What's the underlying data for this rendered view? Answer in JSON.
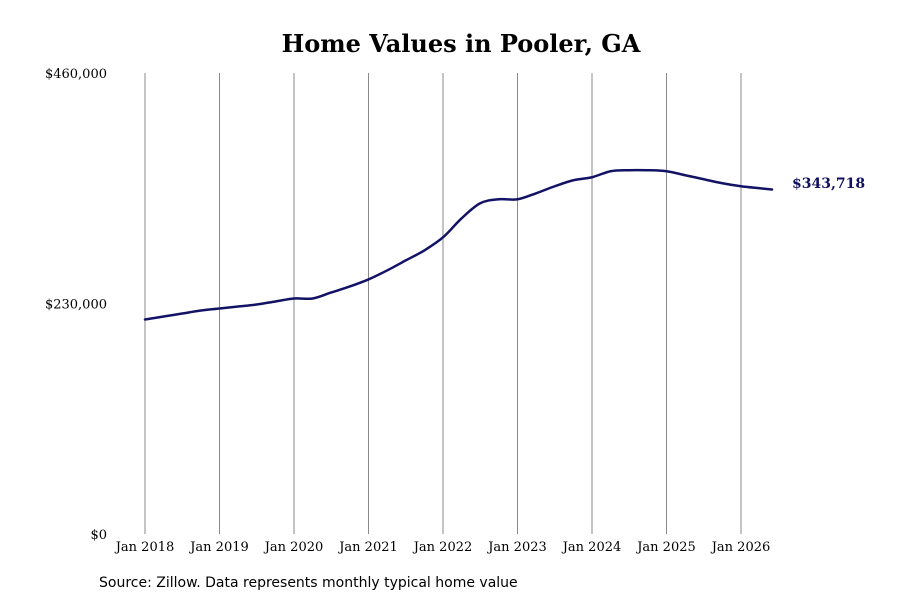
{
  "chart_data": {
    "type": "line",
    "title": "Home Values in Pooler, GA",
    "xlabel": "",
    "ylabel": "",
    "ylim": [
      0,
      460000
    ],
    "y_ticks": [
      {
        "value": 0,
        "label": "$0"
      },
      {
        "value": 230000,
        "label": "$230,000"
      },
      {
        "value": 460000,
        "label": "$460,000"
      }
    ],
    "x_ticks": [
      {
        "value": "2018-01",
        "label": "Jan 2018"
      },
      {
        "value": "2019-01",
        "label": "Jan 2019"
      },
      {
        "value": "2020-01",
        "label": "Jan 2020"
      },
      {
        "value": "2021-01",
        "label": "Jan 2021"
      },
      {
        "value": "2022-01",
        "label": "Jan 2022"
      },
      {
        "value": "2023-01",
        "label": "Jan 2023"
      },
      {
        "value": "2024-01",
        "label": "Jan 2024"
      },
      {
        "value": "2025-01",
        "label": "Jan 2025"
      },
      {
        "value": "2026-01",
        "label": "Jan 2026"
      }
    ],
    "xlim": [
      "2018-01",
      "2026-06"
    ],
    "grid": "vertical",
    "legend": "none",
    "series": [
      {
        "color": "#131366",
        "x": [
          "2018-01",
          "2018-04",
          "2018-07",
          "2018-10",
          "2019-01",
          "2019-04",
          "2019-07",
          "2019-10",
          "2020-01",
          "2020-04",
          "2020-07",
          "2020-10",
          "2021-01",
          "2021-04",
          "2021-07",
          "2021-10",
          "2022-01",
          "2022-04",
          "2022-07",
          "2022-10",
          "2023-01",
          "2023-04",
          "2023-07",
          "2023-10",
          "2024-01",
          "2024-04",
          "2024-07",
          "2024-10",
          "2025-01",
          "2025-04",
          "2025-07",
          "2025-10",
          "2026-01",
          "2026-04",
          "2026-06"
        ],
        "values": [
          214000,
          217000,
          220000,
          223000,
          225000,
          227000,
          229000,
          232000,
          235000,
          235000,
          241000,
          247000,
          254000,
          263000,
          273000,
          283000,
          296000,
          315000,
          330000,
          334000,
          334000,
          340000,
          347000,
          353000,
          356000,
          362000,
          363000,
          363000,
          362000,
          358000,
          354000,
          350000,
          347000,
          345000,
          343718
        ]
      }
    ],
    "end_label": "$343,718",
    "source": "Source: Zillow. Data represents monthly typical home value"
  }
}
